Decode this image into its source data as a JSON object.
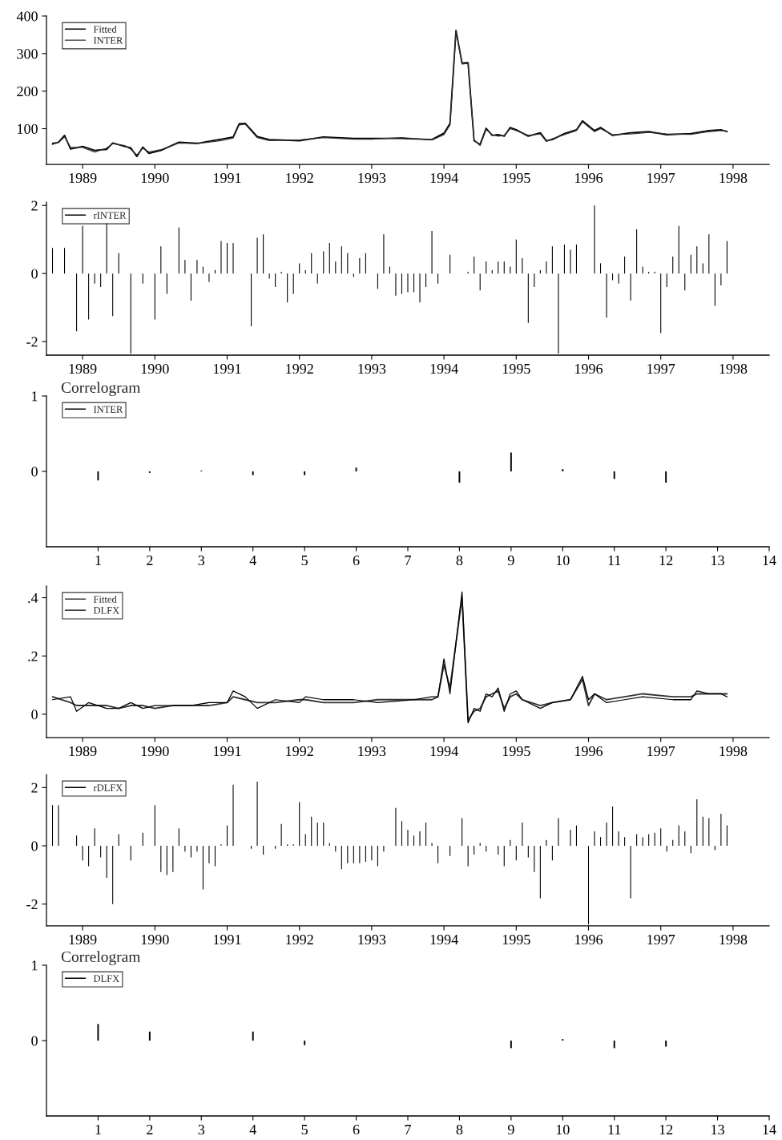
{
  "chart_data": [
    {
      "type": "line",
      "xlim": [
        "1988-07",
        "1998-07"
      ],
      "xticks": [
        "1989",
        "1990",
        "1991",
        "1992",
        "1993",
        "1994",
        "1995",
        "1996",
        "1997",
        "1998"
      ],
      "ylim": [
        5,
        400
      ],
      "yticks": [
        100,
        200,
        300,
        400
      ],
      "legend": "top left",
      "grid": false,
      "series": [
        {
          "name": "Fitted",
          "color": "#000000",
          "x": [
            "1988-08",
            "1988-09",
            "1988-10",
            "1988-11",
            "1989-01",
            "1989-03",
            "1989-05",
            "1989-06",
            "1989-08",
            "1989-09",
            "1989-10",
            "1989-11",
            "1989-12",
            "1990-02",
            "1990-05",
            "1990-08",
            "1990-12",
            "1991-02",
            "1991-03",
            "1991-04",
            "1991-06",
            "1991-08",
            "1992-01",
            "1992-05",
            "1992-10",
            "1993-01",
            "1993-06",
            "1993-11",
            "1994-01",
            "1994-02",
            "1994-03",
            "1994-04",
            "1994-05",
            "1994-06",
            "1994-07",
            "1994-08",
            "1994-09",
            "1994-10",
            "1994-11",
            "1994-12",
            "1995-01",
            "1995-03",
            "1995-05",
            "1995-06",
            "1995-07",
            "1995-09",
            "1995-11",
            "1995-12",
            "1996-02",
            "1996-03",
            "1996-05",
            "1996-08",
            "1996-11",
            "1997-02",
            "1997-06",
            "1997-09",
            "1997-11",
            "1997-12"
          ],
          "values": [
            59,
            64,
            82,
            46,
            53,
            42,
            45,
            62,
            53,
            49,
            26,
            51,
            34,
            42,
            64,
            61,
            72,
            78,
            113,
            114,
            79,
            71,
            68,
            78,
            74,
            74,
            74,
            71,
            88,
            114,
            362,
            275,
            276,
            68,
            58,
            101,
            82,
            84,
            80,
            103,
            97,
            80,
            89,
            68,
            71,
            87,
            97,
            121,
            95,
            103,
            82,
            89,
            92,
            84,
            87,
            95,
            97,
            92
          ]
        },
        {
          "name": "INTER",
          "color": "#333333",
          "x": [
            "1988-08",
            "1988-09",
            "1988-10",
            "1988-11",
            "1989-01",
            "1989-03",
            "1989-05",
            "1989-06",
            "1989-08",
            "1989-09",
            "1989-10",
            "1989-11",
            "1989-12",
            "1990-02",
            "1990-05",
            "1990-08",
            "1990-12",
            "1991-02",
            "1991-03",
            "1991-04",
            "1991-06",
            "1991-08",
            "1992-01",
            "1992-05",
            "1992-10",
            "1993-01",
            "1993-06",
            "1993-11",
            "1994-01",
            "1994-02",
            "1994-03",
            "1994-04",
            "1994-05",
            "1994-06",
            "1994-07",
            "1994-08",
            "1994-09",
            "1994-10",
            "1994-11",
            "1994-12",
            "1995-01",
            "1995-03",
            "1995-05",
            "1995-06",
            "1995-07",
            "1995-09",
            "1995-11",
            "1995-12",
            "1996-02",
            "1996-03",
            "1996-05",
            "1996-08",
            "1996-11",
            "1997-02",
            "1997-06",
            "1997-09",
            "1997-11",
            "1997-12"
          ],
          "values": [
            62,
            63,
            78,
            50,
            50,
            38,
            48,
            60,
            55,
            45,
            30,
            48,
            38,
            44,
            62,
            60,
            68,
            75,
            110,
            112,
            76,
            68,
            70,
            76,
            72,
            72,
            76,
            70,
            84,
            110,
            360,
            272,
            274,
            70,
            55,
            98,
            84,
            80,
            82,
            100,
            95,
            82,
            86,
            66,
            73,
            84,
            95,
            118,
            92,
            100,
            84,
            86,
            90,
            86,
            85,
            92,
            95,
            94
          ]
        }
      ]
    },
    {
      "type": "bar",
      "xlim": [
        "1988-07",
        "1998-07"
      ],
      "xticks": [
        "1989",
        "1990",
        "1991",
        "1992",
        "1993",
        "1994",
        "1995",
        "1996",
        "1997",
        "1998"
      ],
      "ylim": [
        -2.4,
        2.1
      ],
      "yticks": [
        -2,
        0,
        2
      ],
      "legend": "top left",
      "grid": false,
      "series": [
        {
          "name": "rINTER",
          "color": "#000000",
          "x": [
            "1988-08",
            "1988-10",
            "1988-12",
            "1989-01",
            "1989-02",
            "1989-03",
            "1989-04",
            "1989-05",
            "1989-06",
            "1989-07",
            "1989-09",
            "1989-11",
            "1990-01",
            "1990-02",
            "1990-03",
            "1990-05",
            "1990-06",
            "1990-07",
            "1990-08",
            "1990-09",
            "1990-10",
            "1990-11",
            "1990-12",
            "1991-01",
            "1991-02",
            "1991-05",
            "1991-06",
            "1991-07",
            "1991-08",
            "1991-09",
            "1991-10",
            "1991-11",
            "1991-12",
            "1992-01",
            "1992-02",
            "1992-03",
            "1992-04",
            "1992-05",
            "1992-06",
            "1992-07",
            "1992-08",
            "1992-09",
            "1992-10",
            "1992-11",
            "1992-12",
            "1993-02",
            "1993-03",
            "1993-04",
            "1993-05",
            "1993-06",
            "1993-07",
            "1993-08",
            "1993-09",
            "1993-10",
            "1993-11",
            "1993-12",
            "1994-02",
            "1994-05",
            "1994-06",
            "1994-07",
            "1994-08",
            "1994-09",
            "1994-10",
            "1994-11",
            "1994-12",
            "1995-01",
            "1995-02",
            "1995-03",
            "1995-04",
            "1995-05",
            "1995-06",
            "1995-07",
            "1995-08",
            "1995-09",
            "1995-10",
            "1995-11",
            "1996-02",
            "1996-03",
            "1996-04",
            "1996-05",
            "1996-06",
            "1996-07",
            "1996-08",
            "1996-09",
            "1996-10",
            "1996-11",
            "1996-12",
            "1997-01",
            "1997-02",
            "1997-03",
            "1997-04",
            "1997-05",
            "1997-06",
            "1997-07",
            "1997-08",
            "1997-09",
            "1997-10",
            "1997-11",
            "1997-12"
          ],
          "values": [
            0.75,
            0.75,
            -1.7,
            1.4,
            -1.35,
            -0.3,
            -0.4,
            1.5,
            -1.25,
            0.6,
            -2.35,
            -0.3,
            -1.35,
            0.8,
            -0.6,
            1.35,
            0.4,
            -0.8,
            0.4,
            0.2,
            -0.25,
            0.1,
            0.95,
            0.9,
            0.9,
            -1.55,
            1.05,
            1.15,
            -0.15,
            -0.4,
            0.05,
            -0.85,
            -0.6,
            0.3,
            0.1,
            0.6,
            -0.3,
            0.65,
            0.9,
            0.35,
            0.8,
            0.6,
            -0.1,
            0.45,
            0.6,
            -0.45,
            1.15,
            0.2,
            -0.65,
            -0.6,
            -0.55,
            -0.55,
            -0.85,
            -0.4,
            1.25,
            -0.3,
            0.55,
            0.05,
            0.5,
            -0.5,
            0.35,
            0.1,
            0.35,
            0.35,
            0.2,
            1.0,
            0.45,
            -1.45,
            -0.4,
            0.1,
            0.35,
            0.8,
            -2.35,
            0.85,
            0.7,
            0.85,
            2.0,
            0.3,
            -1.3,
            -0.2,
            -0.3,
            0.5,
            -0.8,
            1.3,
            0.2,
            0.05,
            0.05,
            -1.75,
            -0.4,
            0.5,
            1.4,
            -0.5,
            0.55,
            0.8,
            0.3,
            1.15,
            -0.95,
            -0.35,
            0.95
          ]
        }
      ]
    },
    {
      "type": "bar",
      "title": "Correlogram",
      "xlim": [
        0,
        14
      ],
      "xticks": [
        1,
        2,
        3,
        4,
        5,
        6,
        7,
        8,
        9,
        10,
        11,
        12,
        13,
        14
      ],
      "ylim": [
        -1,
        1
      ],
      "yticks": [
        0,
        1
      ],
      "legend": "top left",
      "grid": false,
      "series": [
        {
          "name": "INTER",
          "color": "#000000",
          "x": [
            1,
            2,
            3,
            4,
            5,
            6,
            7,
            8,
            9,
            10,
            11,
            12
          ],
          "values": [
            -0.12,
            -0.02,
            0.01,
            -0.05,
            -0.05,
            0.05,
            null,
            -0.15,
            0.25,
            0.03,
            -0.1,
            -0.15
          ]
        }
      ]
    },
    {
      "type": "line",
      "xlim": [
        "1988-07",
        "1998-07"
      ],
      "xticks": [
        "1989",
        "1990",
        "1991",
        "1992",
        "1993",
        "1994",
        "1995",
        "1996",
        "1997",
        "1998"
      ],
      "ylim": [
        -0.08,
        0.44
      ],
      "yticks": [
        0,
        {
          "value": 0.2,
          "label": ".2"
        },
        {
          "value": 0.4,
          "label": ".4"
        }
      ],
      "legend": "top left",
      "grid": false,
      "series": [
        {
          "name": "Fitted",
          "color": "#333333",
          "x": [
            "1988-08",
            "1988-11",
            "1988-12",
            "1989-02",
            "1989-05",
            "1989-07",
            "1989-09",
            "1989-11",
            "1990-01",
            "1990-04",
            "1990-07",
            "1990-10",
            "1991-01",
            "1991-02",
            "1991-04",
            "1991-06",
            "1991-09",
            "1992-01",
            "1992-02",
            "1992-05",
            "1992-10",
            "1993-02",
            "1993-08",
            "1993-11",
            "1993-12",
            "1994-01",
            "1994-02",
            "1994-04",
            "1994-05",
            "1994-06",
            "1994-07",
            "1994-08",
            "1994-09",
            "1994-10",
            "1994-11",
            "1994-12",
            "1995-01",
            "1995-02",
            "1995-05",
            "1995-07",
            "1995-10",
            "1995-12",
            "1996-01",
            "1996-02",
            "1996-04",
            "1996-07",
            "1996-10",
            "1997-03",
            "1997-06",
            "1997-07",
            "1997-09",
            "1997-11",
            "1997-12"
          ],
          "values": [
            0.06,
            0.04,
            0.03,
            0.03,
            0.03,
            0.02,
            0.03,
            0.03,
            0.02,
            0.03,
            0.03,
            0.03,
            0.04,
            0.06,
            0.05,
            0.04,
            0.04,
            0.05,
            0.05,
            0.04,
            0.04,
            0.05,
            0.05,
            0.05,
            0.06,
            0.17,
            0.09,
            0.4,
            -0.02,
            0.01,
            0.02,
            0.06,
            0.07,
            0.08,
            0.02,
            0.06,
            0.07,
            0.05,
            0.03,
            0.04,
            0.05,
            0.12,
            0.03,
            0.07,
            0.05,
            0.06,
            0.07,
            0.06,
            0.06,
            0.07,
            0.07,
            0.07,
            0.07
          ]
        },
        {
          "name": "DLFX",
          "color": "#000000",
          "x": [
            "1988-08",
            "1988-11",
            "1988-12",
            "1989-02",
            "1989-05",
            "1989-07",
            "1989-09",
            "1989-11",
            "1990-01",
            "1990-04",
            "1990-07",
            "1990-10",
            "1991-01",
            "1991-02",
            "1991-04",
            "1991-06",
            "1991-09",
            "1992-01",
            "1992-02",
            "1992-05",
            "1992-10",
            "1993-02",
            "1993-08",
            "1993-11",
            "1993-12",
            "1994-01",
            "1994-02",
            "1994-04",
            "1994-05",
            "1994-06",
            "1994-07",
            "1994-08",
            "1994-09",
            "1994-10",
            "1994-11",
            "1994-12",
            "1995-01",
            "1995-02",
            "1995-05",
            "1995-07",
            "1995-10",
            "1995-12",
            "1996-01",
            "1996-02",
            "1996-04",
            "1996-07",
            "1996-10",
            "1997-03",
            "1997-06",
            "1997-07",
            "1997-09",
            "1997-11",
            "1997-12"
          ],
          "values": [
            0.05,
            0.06,
            0.01,
            0.04,
            0.02,
            0.02,
            0.04,
            0.02,
            0.03,
            0.03,
            0.03,
            0.04,
            0.04,
            0.08,
            0.06,
            0.02,
            0.05,
            0.04,
            0.06,
            0.05,
            0.05,
            0.04,
            0.05,
            0.06,
            0.06,
            0.19,
            0.07,
            0.42,
            -0.03,
            0.02,
            0.01,
            0.07,
            0.06,
            0.09,
            0.01,
            0.07,
            0.08,
            0.05,
            0.02,
            0.04,
            0.05,
            0.13,
            0.05,
            0.07,
            0.04,
            0.05,
            0.06,
            0.05,
            0.05,
            0.08,
            0.07,
            0.07,
            0.06
          ]
        }
      ]
    },
    {
      "type": "bar",
      "xlim": [
        "1988-07",
        "1998-07"
      ],
      "xticks": [
        "1989",
        "1990",
        "1991",
        "1992",
        "1993",
        "1994",
        "1995",
        "1996",
        "1997",
        "1998"
      ],
      "ylim": [
        -2.75,
        2.45
      ],
      "yticks": [
        -2,
        0,
        2
      ],
      "legend": "top left",
      "grid": false,
      "series": [
        {
          "name": "rDLFX",
          "color": "#000000",
          "x": [
            "1988-08",
            "1988-09",
            "1988-12",
            "1989-01",
            "1989-02",
            "1989-03",
            "1989-04",
            "1989-05",
            "1989-06",
            "1989-07",
            "1989-09",
            "1989-11",
            "1990-01",
            "1990-02",
            "1990-03",
            "1990-04",
            "1990-05",
            "1990-06",
            "1990-07",
            "1990-08",
            "1990-09",
            "1990-10",
            "1990-11",
            "1990-12",
            "1991-01",
            "1991-02",
            "1991-05",
            "1991-06",
            "1991-07",
            "1991-09",
            "1991-10",
            "1991-11",
            "1991-12",
            "1992-01",
            "1992-02",
            "1992-03",
            "1992-04",
            "1992-05",
            "1992-06",
            "1992-07",
            "1992-08",
            "1992-09",
            "1992-10",
            "1992-11",
            "1992-12",
            "1993-01",
            "1993-02",
            "1993-03",
            "1993-05",
            "1993-06",
            "1993-07",
            "1993-08",
            "1993-09",
            "1993-10",
            "1993-11",
            "1993-12",
            "1994-02",
            "1994-04",
            "1994-05",
            "1994-06",
            "1994-07",
            "1994-08",
            "1994-10",
            "1994-11",
            "1994-12",
            "1995-01",
            "1995-02",
            "1995-03",
            "1995-04",
            "1995-05",
            "1995-06",
            "1995-07",
            "1995-08",
            "1995-10",
            "1995-11",
            "1996-01",
            "1996-02",
            "1996-03",
            "1996-04",
            "1996-05",
            "1996-06",
            "1996-07",
            "1996-08",
            "1996-09",
            "1996-10",
            "1996-11",
            "1996-12",
            "1997-01",
            "1997-02",
            "1997-03",
            "1997-04",
            "1997-05",
            "1997-06",
            "1997-07",
            "1997-08",
            "1997-09",
            "1997-10",
            "1997-11",
            "1997-12"
          ],
          "values": [
            1.4,
            1.4,
            0.35,
            -0.5,
            -0.7,
            0.6,
            -0.4,
            -1.1,
            -2.0,
            0.4,
            -0.5,
            0.45,
            1.4,
            -0.9,
            -1.0,
            -0.9,
            0.6,
            -0.2,
            -0.4,
            -0.2,
            -1.5,
            -0.6,
            -0.7,
            0.05,
            0.7,
            2.1,
            -0.1,
            2.2,
            -0.3,
            -0.1,
            0.75,
            0.05,
            0.05,
            1.5,
            0.4,
            1.0,
            0.8,
            0.8,
            0.1,
            -0.2,
            -0.8,
            -0.6,
            -0.6,
            -0.6,
            -0.55,
            -0.5,
            -0.7,
            -0.2,
            1.3,
            0.85,
            0.55,
            0.35,
            0.5,
            0.8,
            0.1,
            -0.6,
            -0.35,
            0.95,
            -0.7,
            -0.3,
            0.1,
            -0.2,
            -0.3,
            -0.7,
            0.2,
            -0.5,
            0.8,
            -0.4,
            -0.9,
            -1.8,
            0.2,
            -0.5,
            0.95,
            0.55,
            0.7,
            -2.7,
            0.5,
            0.3,
            0.8,
            1.35,
            0.5,
            0.3,
            -1.8,
            0.4,
            0.3,
            0.4,
            0.45,
            0.6,
            -0.2,
            0.2,
            0.7,
            0.5,
            -0.25,
            1.6,
            1.0,
            0.95,
            -0.15,
            1.1,
            0.7
          ]
        }
      ]
    },
    {
      "type": "bar",
      "title": "Correlogram",
      "xlim": [
        0,
        14
      ],
      "xticks": [
        1,
        2,
        3,
        4,
        5,
        6,
        7,
        8,
        9,
        10,
        11,
        12,
        13,
        14
      ],
      "ylim": [
        -1,
        1
      ],
      "yticks": [
        0,
        1
      ],
      "legend": "top left",
      "grid": false,
      "series": [
        {
          "name": "DLFX",
          "color": "#000000",
          "x": [
            1,
            2,
            3,
            4,
            5,
            6,
            7,
            8,
            9,
            10,
            11,
            12
          ],
          "values": [
            0.22,
            0.12,
            null,
            0.12,
            -0.06,
            null,
            null,
            null,
            -0.1,
            0.02,
            -0.1,
            -0.08
          ]
        }
      ]
    }
  ]
}
